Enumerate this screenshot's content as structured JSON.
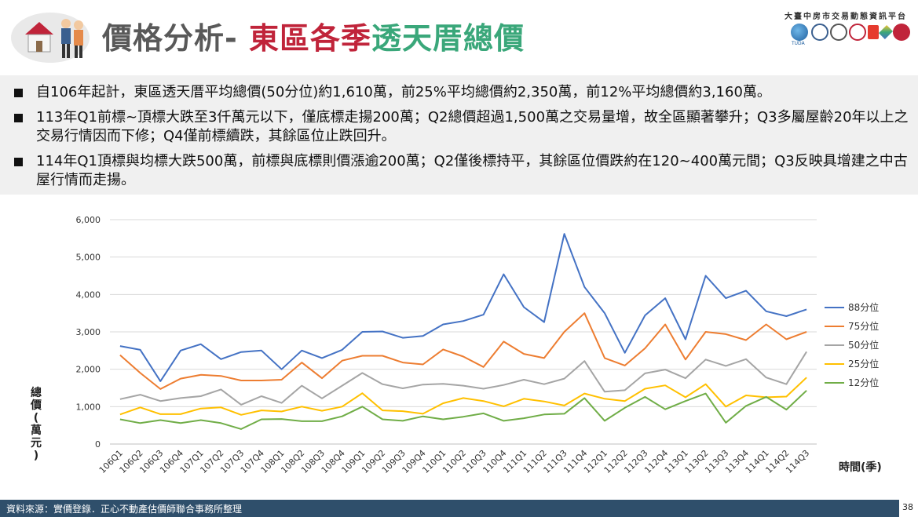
{
  "header": {
    "title_part1": "價格分析- ",
    "title_part2": "東區各季",
    "title_part3": "透天厝總價",
    "platform": "大臺中房市交易動態資訊平台",
    "logo_text": "TUDA"
  },
  "summary": {
    "bullets": [
      "自106年起計，東區透天厝平均總價(50分位)約1,610萬，前25%平均總價約2,350萬，前12%平均總價約3,160萬。",
      "113年Q1前標~頂標大跌至3仟萬元以下，僅底標走揚200萬；Q2總價超過1,500萬之交易量增，故全區顯著攀升；Q3多屬屋齡20年以上之交易行情因而下修；Q4僅前標續跌，其餘區位止跌回升。",
      "114年Q1頂標與均標大跌500萬，前標與底標則價漲逾200萬；Q2僅後標持平，其餘區位價跌約在120~400萬元間；Q3反映具增建之中古屋行情而走揚。"
    ]
  },
  "chart_data": {
    "type": "line",
    "ylabel": "總價(萬元)",
    "xlabel": "時間(季)",
    "ylim": [
      0,
      6000
    ],
    "yticks": [
      "0",
      "1,000",
      "2,000",
      "3,000",
      "4,000",
      "5,000",
      "6,000"
    ],
    "legend_position": "right",
    "categories": [
      "106Q1",
      "106Q2",
      "106Q3",
      "106Q4",
      "107Q1",
      "107Q2",
      "107Q3",
      "107Q4",
      "108Q1",
      "108Q2",
      "108Q3",
      "108Q4",
      "109Q1",
      "109Q2",
      "109Q3",
      "109Q4",
      "110Q1",
      "110Q2",
      "110Q3",
      "110Q4",
      "111Q1",
      "111Q2",
      "111Q3",
      "111Q4",
      "112Q1",
      "112Q2",
      "112Q3",
      "112Q4",
      "113Q1",
      "113Q2",
      "113Q3",
      "113Q4",
      "114Q1",
      "114Q2",
      "114Q3"
    ],
    "series": [
      {
        "name": "88分位",
        "color": "#4472c4",
        "values": [
          2620,
          2520,
          1680,
          2500,
          2670,
          2270,
          2460,
          2500,
          2000,
          2500,
          2300,
          2520,
          3000,
          3010,
          2840,
          2890,
          3200,
          3290,
          3460,
          4540,
          3660,
          3260,
          5620,
          4200,
          3500,
          2440,
          3440,
          3900,
          2800,
          4500,
          3900,
          4100,
          3550,
          3420,
          3600
        ]
      },
      {
        "name": "75分位",
        "color": "#ed7d31",
        "values": [
          2380,
          1900,
          1470,
          1750,
          1850,
          1820,
          1700,
          1700,
          1720,
          2180,
          1760,
          2230,
          2360,
          2360,
          2180,
          2130,
          2530,
          2340,
          2060,
          2740,
          2410,
          2300,
          3000,
          3500,
          2300,
          2100,
          2560,
          3200,
          2260,
          3000,
          2940,
          2780,
          3200,
          2800,
          3000
        ]
      },
      {
        "name": "50分位",
        "color": "#a5a5a5",
        "values": [
          1200,
          1320,
          1150,
          1230,
          1280,
          1460,
          1050,
          1280,
          1100,
          1560,
          1220,
          1560,
          1900,
          1600,
          1490,
          1590,
          1610,
          1560,
          1480,
          1580,
          1720,
          1600,
          1750,
          2220,
          1400,
          1440,
          1890,
          1990,
          1760,
          2260,
          2090,
          2270,
          1780,
          1600,
          2470
        ]
      },
      {
        "name": "25分位",
        "color": "#ffc000",
        "values": [
          790,
          980,
          800,
          800,
          950,
          980,
          780,
          900,
          870,
          1000,
          890,
          1000,
          1360,
          900,
          880,
          810,
          1090,
          1230,
          1150,
          1010,
          1210,
          1140,
          1030,
          1350,
          1210,
          1150,
          1480,
          1570,
          1250,
          1600,
          1000,
          1300,
          1250,
          1270,
          1780
        ]
      },
      {
        "name": "12分位",
        "color": "#70ad47",
        "values": [
          660,
          560,
          640,
          560,
          640,
          560,
          400,
          660,
          670,
          610,
          610,
          740,
          1000,
          660,
          620,
          740,
          660,
          730,
          820,
          620,
          690,
          790,
          810,
          1230,
          620,
          970,
          1260,
          930,
          1150,
          1350,
          570,
          1020,
          1260,
          920,
          1430
        ]
      }
    ]
  },
  "footer": {
    "source": "資料來源：實價登錄．正心不動產估價師聯合事務所整理",
    "page": "38"
  },
  "colors": {
    "title_gray": "#595959",
    "title_red": "#c0243a",
    "title_green": "#3aa77a",
    "footer_bg": "#2f4f6b",
    "summary_bg": "#f0f0f0"
  }
}
